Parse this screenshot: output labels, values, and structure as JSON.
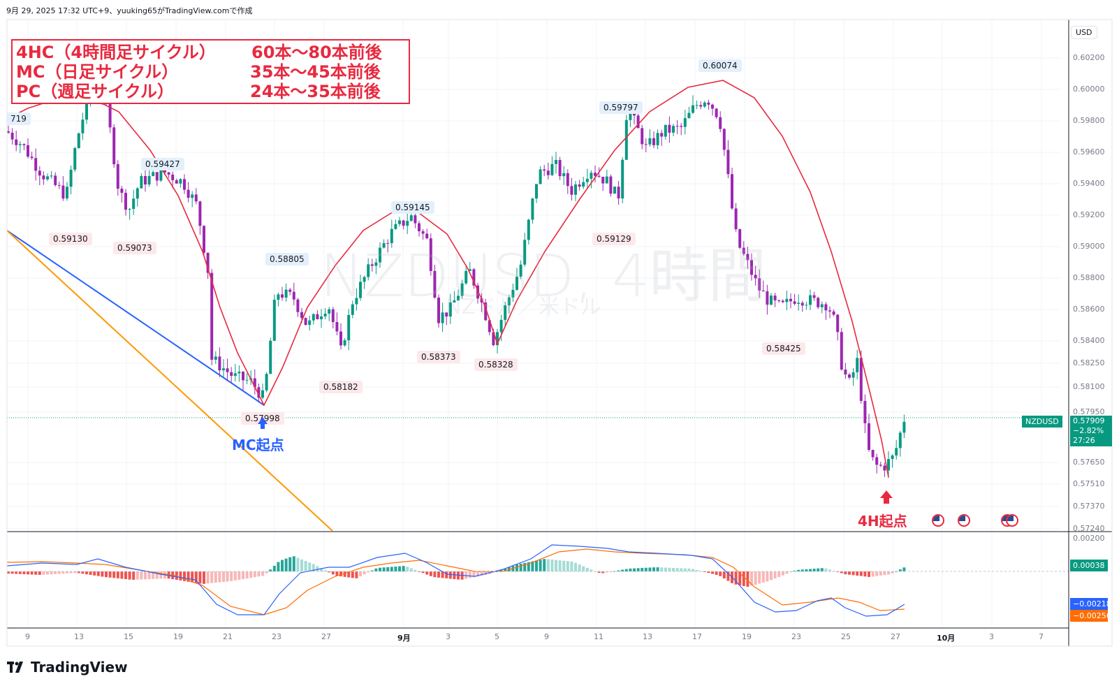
{
  "header": {
    "caption": "9月 29, 2025 17:32 UTC+9、yuuking65がTradingView.comで作成"
  },
  "watermark": {
    "symbol_line": "NZDUSD, 4時間",
    "name_line": "NZドル／米ドル"
  },
  "annotation_box": {
    "rows": [
      {
        "left": "4HC（4時間足サイクル）",
        "right": "60本〜80本前後"
      },
      {
        "left": "MC（日足サイクル）",
        "right": "35本〜45本前後"
      },
      {
        "left": "PC（週足サイクル）",
        "right": "24本〜35本前後"
      }
    ],
    "color": "#e8293f"
  },
  "markers": {
    "mc_start": {
      "text": "MC起点",
      "color": "#2962ff"
    },
    "h4_start": {
      "text": "4H起点",
      "color": "#e8293f"
    }
  },
  "price_axis": {
    "currency": "USD",
    "ticks": [
      "0.60200",
      "0.60000",
      "0.59800",
      "0.59600",
      "0.59400",
      "0.59200",
      "0.59000",
      "0.58800",
      "0.58600",
      "0.58400",
      "0.58250",
      "0.58100",
      "0.57950",
      "0.57650",
      "0.57510",
      "0.57370",
      "0.57240"
    ],
    "symbol": "NZDUSD",
    "last_price": "0.57909",
    "change": "−2.82%",
    "countdown": "27:26"
  },
  "macd_axis": {
    "top_tick": "0.00200",
    "histogram_value": "0.00038",
    "macd_value": "−0.00218",
    "signal_value": "−0.00256"
  },
  "time_axis": {
    "labels": [
      "9",
      "13",
      "15",
      "19",
      "21",
      "23",
      "27",
      "9月",
      "3",
      "5",
      "9",
      "11",
      "13",
      "17",
      "19",
      "23",
      "25",
      "27",
      "10月",
      "3",
      "7"
    ]
  },
  "swing_labels": {
    "highs": [
      "719",
      "0.59427",
      "0.58805",
      "0.59145",
      "0.59797",
      "0.60074"
    ],
    "lows": [
      "0.59130",
      "0.59073",
      "0.57998",
      "0.58182",
      "0.58373",
      "0.58328",
      "0.59129",
      "0.58425"
    ]
  },
  "colors": {
    "up": "#089981",
    "down": "#9c27b0",
    "cycle_arc": "#e8293f",
    "trend_blue": "#2962ff",
    "trend_orange": "#ff9800",
    "macd_line": "#2962ff",
    "signal_line": "#ff6d00",
    "hist_pos": "#26a69a",
    "hist_neg": "#ef5350"
  },
  "chart_data": {
    "type": "candlestick",
    "symbol": "NZDUSD",
    "timeframe": "4時間",
    "y_range": [
      0.5724,
      0.6026
    ],
    "swing_points": [
      {
        "x": "8/8",
        "y": 0.59719,
        "kind": "high"
      },
      {
        "x": "8/11",
        "y": 0.5913,
        "kind": "low"
      },
      {
        "x": "8/15",
        "y": 0.59073,
        "kind": "low"
      },
      {
        "x": "8/17",
        "y": 0.59427,
        "kind": "high"
      },
      {
        "x": "8/22",
        "y": 0.57998,
        "kind": "low"
      },
      {
        "x": "8/23",
        "y": 0.58805,
        "kind": "high"
      },
      {
        "x": "8/27",
        "y": 0.58182,
        "kind": "low"
      },
      {
        "x": "9/1",
        "y": 0.59145,
        "kind": "high"
      },
      {
        "x": "9/3",
        "y": 0.58373,
        "kind": "low"
      },
      {
        "x": "9/5",
        "y": 0.58328,
        "kind": "low"
      },
      {
        "x": "9/11",
        "y": 0.59129,
        "kind": "low"
      },
      {
        "x": "9/11",
        "y": 0.59797,
        "kind": "high"
      },
      {
        "x": "9/18",
        "y": 0.60074,
        "kind": "high"
      },
      {
        "x": "9/22",
        "y": 0.58425,
        "kind": "low"
      },
      {
        "x": "9/29",
        "y": 0.57909,
        "kind": "last"
      }
    ],
    "indicator": {
      "name": "MACD",
      "histogram_last": 0.00038,
      "macd_last": -0.00218,
      "signal_last": -0.00256
    }
  }
}
